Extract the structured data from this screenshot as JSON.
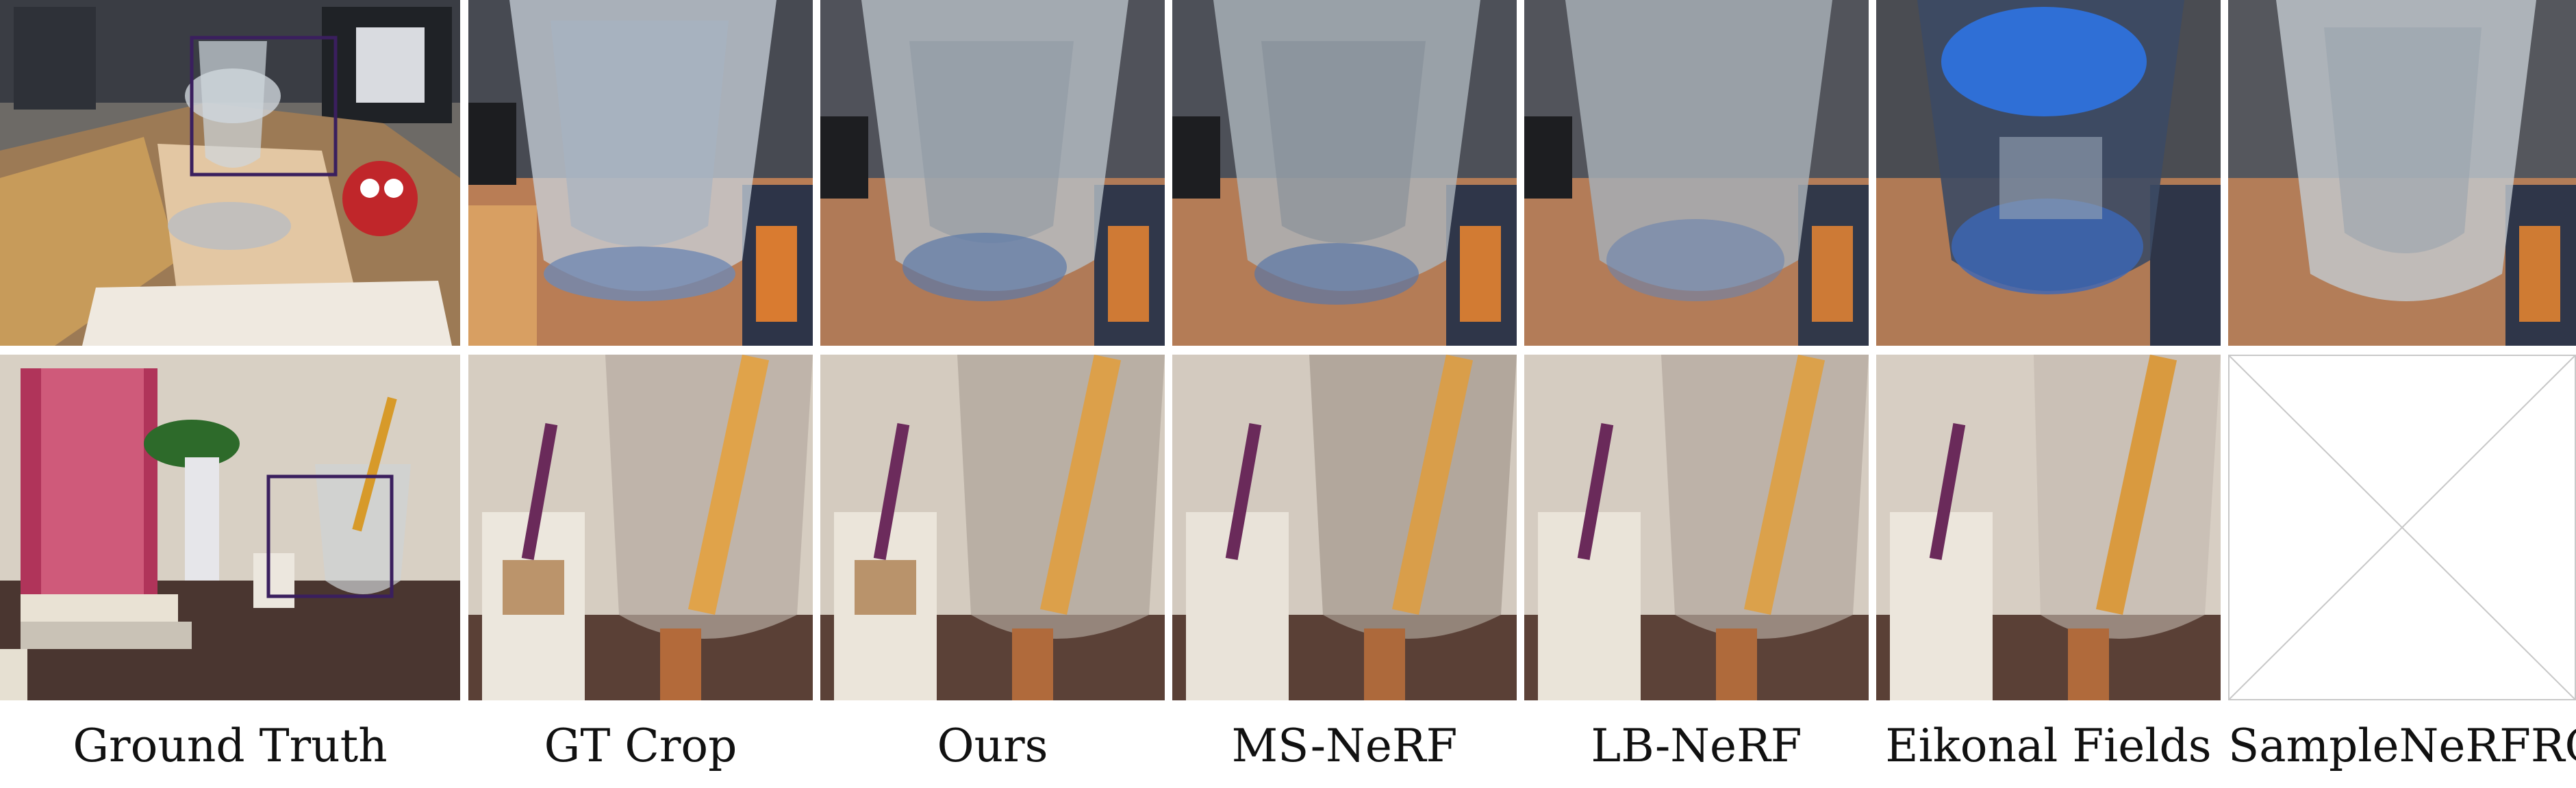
{
  "figure": {
    "columns": [
      {
        "id": "gt",
        "label": "Ground Truth"
      },
      {
        "id": "gtcrop",
        "label": "GT Crop"
      },
      {
        "id": "ours",
        "label": "Ours"
      },
      {
        "id": "msnerf",
        "label": "MS-NeRF"
      },
      {
        "id": "lbnerf",
        "label": "LB-NeRF"
      },
      {
        "id": "eikonal",
        "label": "Eikonal Fields"
      },
      {
        "id": "samplenerfro",
        "label": "SampleNeRFRO"
      }
    ],
    "rows": [
      {
        "id": "glass-row",
        "scene": "glass-on-postcards"
      },
      {
        "id": "pencil-row",
        "scene": "wineglass-with-pencil"
      }
    ],
    "missing_result": "samplenerfro pencil-row",
    "colors": {
      "highlight_box": "#3a1f5e",
      "missing_cross": "#c8c8c8"
    }
  }
}
